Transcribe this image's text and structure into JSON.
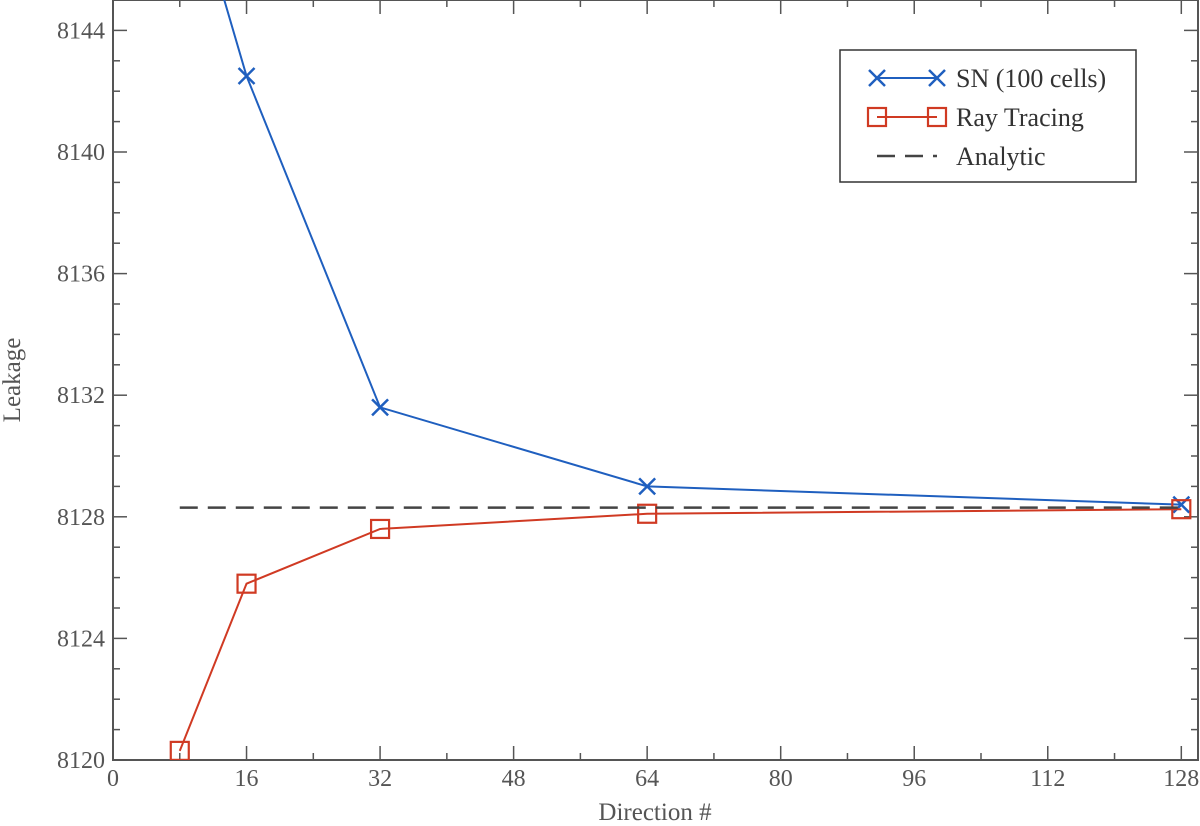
{
  "chart_data": {
    "type": "line",
    "title": "",
    "xlabel": "Direction #",
    "ylabel": "Leakage",
    "xlim": [
      0,
      130
    ],
    "ylim": [
      8120,
      8145
    ],
    "x_ticks": [
      0,
      16,
      32,
      48,
      64,
      80,
      96,
      112,
      128
    ],
    "x_tick_labels": [
      "0",
      "16",
      "32",
      "48",
      "64",
      "80",
      "96",
      "112",
      "128"
    ],
    "y_ticks": [
      8120,
      8124,
      8128,
      8132,
      8136,
      8140,
      8144
    ],
    "y_tick_labels": [
      "8120",
      "8124",
      "8128",
      "8132",
      "8136",
      "8140",
      "8144"
    ],
    "grid": false,
    "legend_position": "top-right",
    "series": [
      {
        "name": "SN (100 cells)",
        "color": "#1f5fbf",
        "marker": "x",
        "line": "solid",
        "x": [
          8,
          16,
          32,
          64,
          128
        ],
        "y": [
          8150,
          8142.5,
          8131.6,
          8129.0,
          8128.4
        ]
      },
      {
        "name": "Ray Tracing",
        "color": "#d03a23",
        "marker": "square",
        "line": "solid",
        "x": [
          8,
          16,
          32,
          64,
          128
        ],
        "y": [
          8120.3,
          8125.8,
          8127.6,
          8128.1,
          8128.25
        ]
      },
      {
        "name": "Analytic",
        "color": "#444444",
        "marker": "none",
        "line": "dashed",
        "x": [
          8,
          128
        ],
        "y": [
          8128.3,
          8128.3
        ]
      }
    ]
  }
}
